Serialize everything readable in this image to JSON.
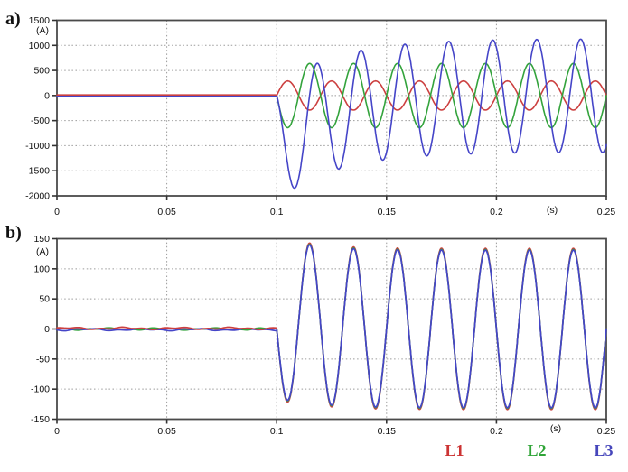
{
  "figure": {
    "background": "#ffffff"
  },
  "legend": {
    "items": [
      {
        "label": "L1",
        "color": "#cc3333"
      },
      {
        "label": "L2",
        "color": "#2fa437"
      },
      {
        "label": "L3",
        "color": "#4646bb"
      }
    ]
  },
  "chart_data": [
    {
      "id": "a",
      "type": "line",
      "panel_label": "a)",
      "ylabel": "(A)",
      "xlabel": "(s)",
      "xlim": [
        0,
        0.25
      ],
      "ylim": [
        -2000,
        1500
      ],
      "x_tick_values": [
        0,
        0.05,
        0.1,
        0.15,
        0.2,
        0.25
      ],
      "x_tick_labels": [
        "0",
        "0.05",
        "0.1",
        "0.15",
        "0.2",
        "0.25"
      ],
      "y_tick_values": [
        1500,
        1000,
        500,
        0,
        -500,
        -1000,
        -1500,
        -2000
      ],
      "y_tick_labels": [
        "1500",
        "1000",
        "500",
        "0",
        "-500",
        "-1000",
        "-1500",
        "-2000"
      ],
      "grid": true,
      "frequency_hz": 50,
      "fault_time_s": 0.1,
      "pre_fault": {
        "value_a": 0,
        "noise_amplitude_a": 0
      },
      "series": [
        {
          "name": "L1",
          "color": "#cc4040",
          "amplitude_a": 290,
          "phase_deg": 0,
          "dc_amp_a": 0,
          "dc_tau1_s": 0,
          "dc_tau2_s": 0,
          "steady_peak_a": 290
        },
        {
          "name": "L2",
          "color": "#33a33c",
          "amplitude_a": 640,
          "phase_deg": 180,
          "dc_amp_a": 0,
          "dc_tau1_s": 0,
          "dc_tau2_s": 0,
          "steady_peak_a": 640
        },
        {
          "name": "L3",
          "color": "#4545c8",
          "amplitude_a": 1130,
          "phase_deg": 120,
          "dc_amp_a": -979,
          "dc_tau1_s": 0.0264,
          "dc_tau2_s": 0,
          "steady_peak_a": 1130,
          "first_cycle_min_a": -1840
        }
      ]
    },
    {
      "id": "b",
      "type": "line",
      "panel_label": "b)",
      "ylabel": "(A)",
      "xlabel": "(s)",
      "xlim": [
        0,
        0.25
      ],
      "ylim": [
        -150,
        150
      ],
      "x_tick_values": [
        0,
        0.05,
        0.1,
        0.15,
        0.2,
        0.25
      ],
      "x_tick_labels": [
        "0",
        "0.05",
        "0.1",
        "0.15",
        "0.2",
        "0.25"
      ],
      "y_tick_values": [
        150,
        100,
        50,
        0,
        -50,
        -100,
        -150
      ],
      "y_tick_labels": [
        "150",
        "100",
        "50",
        "0",
        "-50",
        "-100",
        "-150"
      ],
      "grid": true,
      "frequency_hz": 50,
      "fault_time_s": 0.1,
      "pre_fault": {
        "value_a": 0,
        "noise_amplitude_a": 1.8
      },
      "series": [
        {
          "name": "L1",
          "color": "#cc4040",
          "amplitude_a": 134,
          "phase_deg": 180,
          "dc_amp_a": 24,
          "dc_tau1_s": 0.015,
          "dc_tau2_s": 0.003,
          "steady_peak_a": 132,
          "first_peak_a": 140,
          "first_trough_a": -110
        },
        {
          "name": "L2",
          "color": "#33a33c",
          "amplitude_a": 132,
          "phase_deg": 180,
          "dc_amp_a": 24,
          "dc_tau1_s": 0.015,
          "dc_tau2_s": 0.003,
          "steady_peak_a": 130
        },
        {
          "name": "L3",
          "color": "#4545c8",
          "amplitude_a": 131,
          "phase_deg": 180,
          "dc_amp_a": 24,
          "dc_tau1_s": 0.015,
          "dc_tau2_s": 0.003,
          "steady_peak_a": 130
        }
      ]
    }
  ]
}
